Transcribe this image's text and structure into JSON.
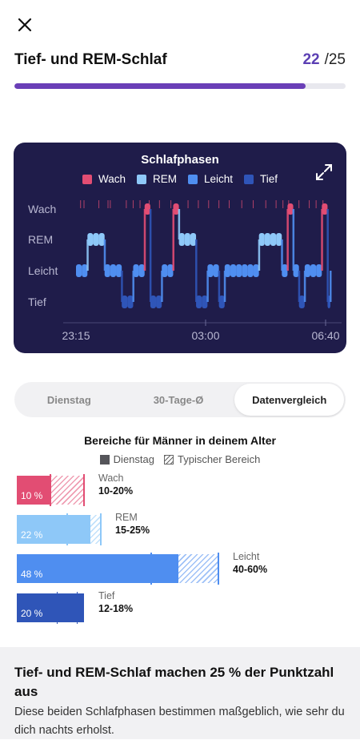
{
  "header": {
    "title": "Tief- und REM-Schlaf",
    "progress_current": "22",
    "progress_total": "/25",
    "progress_fraction": 0.88
  },
  "sleep_chart": {
    "title": "Schlafphasen",
    "legend": [
      {
        "label": "Wach",
        "color": "#e24d73"
      },
      {
        "label": "REM",
        "color": "#8ec8f8"
      },
      {
        "label": "Leicht",
        "color": "#4f8ef0"
      },
      {
        "label": "Tief",
        "color": "#2f55b8"
      }
    ],
    "stages": [
      "Wach",
      "REM",
      "Leicht",
      "Tief"
    ],
    "x_ticks": [
      "23:15",
      "03:00",
      "06:40"
    ],
    "icons": {
      "expand": "expand-icon"
    }
  },
  "chart_data": {
    "type": "line",
    "title": "Schlafphasen",
    "categories": [
      "Wach",
      "REM",
      "Leicht",
      "Tief"
    ],
    "x_ticks": [
      "23:15",
      "03:00",
      "06:40"
    ],
    "series": [
      {
        "name": "Schlafphasen",
        "x_minutes": [
          0,
          10,
          20,
          30,
          40,
          50,
          60,
          70,
          80,
          90,
          100,
          110,
          120,
          130,
          140,
          150,
          160,
          170,
          180,
          190,
          200,
          210,
          220,
          230,
          240,
          250,
          260,
          270,
          280,
          290,
          300,
          310,
          320,
          330,
          340,
          350,
          360,
          370,
          380,
          390,
          400,
          410,
          420,
          430,
          440,
          445
        ],
        "stage": [
          "Leicht",
          "Leicht",
          "REM",
          "REM",
          "REM",
          "Leicht",
          "Leicht",
          "Leicht",
          "Tief",
          "Tief",
          "Leicht",
          "Leicht",
          "Wach",
          "Tief",
          "Tief",
          "Leicht",
          "Leicht",
          "Wach",
          "REM",
          "REM",
          "REM",
          "Tief",
          "Tief",
          "Leicht",
          "Leicht",
          "Tief",
          "Leicht",
          "Leicht",
          "Leicht",
          "Leicht",
          "Leicht",
          "Leicht",
          "REM",
          "REM",
          "REM",
          "REM",
          "Leicht",
          "Wach",
          "Leicht",
          "Tief",
          "Leicht",
          "Leicht",
          "Leicht",
          "Wach",
          "Tief",
          "Leicht"
        ]
      }
    ]
  },
  "tabs": {
    "items": [
      "Dienstag",
      "30-Tage-Ø",
      "Datenvergleich"
    ],
    "active_index": 2
  },
  "comparison": {
    "title": "Bereiche für Männer in deinem Alter",
    "legend_solid": "Dienstag",
    "legend_hatch": "Typischer Bereich",
    "rows": [
      {
        "stage": "Wach",
        "value_label": "10 %",
        "value": 10,
        "range_label": "10-20%",
        "range": [
          10,
          20
        ],
        "color": "#e24d73"
      },
      {
        "stage": "REM",
        "value_label": "22 %",
        "value": 22,
        "range_label": "15-25%",
        "range": [
          15,
          25
        ],
        "color": "#8ec8f8"
      },
      {
        "stage": "Leicht",
        "value_label": "48 %",
        "value": 48,
        "range_label": "40-60%",
        "range": [
          40,
          60
        ],
        "color": "#4f8ef0"
      },
      {
        "stage": "Tief",
        "value_label": "20 %",
        "value": 20,
        "range_label": "12-18%",
        "range": [
          12,
          18
        ],
        "color": "#2f55b8"
      }
    ]
  },
  "footer": {
    "title": "Tief- und REM-Schlaf machen 25 % der Punktzahl aus",
    "text": "Diese beiden Schlafphasen bestimmen maßgeblich, wie sehr du dich nachts erholst."
  }
}
